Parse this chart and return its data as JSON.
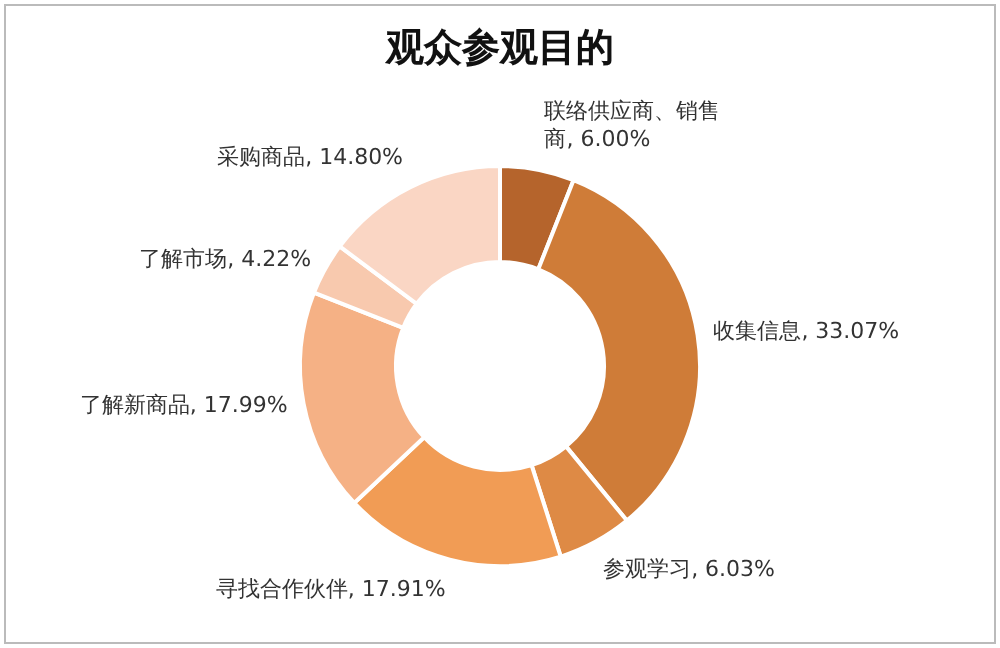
{
  "chart_data": {
    "type": "donut",
    "title": "观众参观目的",
    "categories": [
      "联络供应商、销售商",
      "收集信息",
      "参观学习",
      "寻找合作伙伴",
      "了解新商品",
      "了解市场",
      "采购商品"
    ],
    "values": [
      6.0,
      33.07,
      6.03,
      17.91,
      17.99,
      4.22,
      14.8
    ],
    "value_labels": [
      "6.00%",
      "33.07%",
      "6.03%",
      "17.91%",
      "17.99%",
      "4.22%",
      "14.80%"
    ],
    "colors": [
      "#b5642c",
      "#cf7c38",
      "#de8a45",
      "#f19c55",
      "#f5b185",
      "#f8c9ae",
      "#fad6c4"
    ]
  }
}
